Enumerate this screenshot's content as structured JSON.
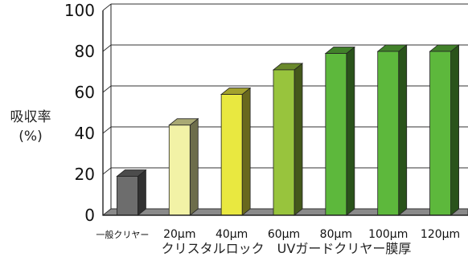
{
  "chart_data": {
    "type": "bar",
    "categories": [
      "一般クリヤー",
      "20μm",
      "40μm",
      "60μm",
      "80μm",
      "100μm",
      "120μm"
    ],
    "values": [
      19,
      44,
      59,
      71,
      79,
      80,
      80
    ],
    "colors": [
      "#6d6d6d",
      "#f2f2a6",
      "#e9e840",
      "#98c43d",
      "#5db83c",
      "#5db83c",
      "#5db83c"
    ],
    "ylabel_line1": "吸収率",
    "ylabel_line2": "(%)",
    "xlabel": "クリスタルロック　UVガードクリヤー膜厚",
    "ylim": [
      0,
      100
    ],
    "yticks": [
      0,
      20,
      40,
      60,
      80,
      100
    ],
    "grid": true
  }
}
